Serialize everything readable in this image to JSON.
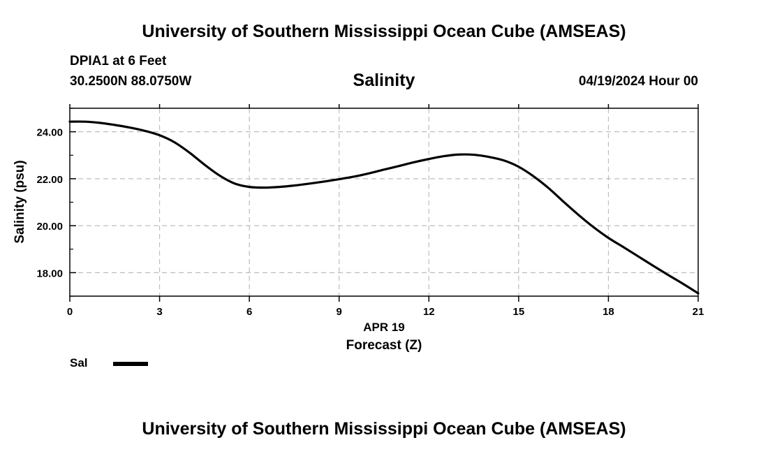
{
  "header": {
    "title": "University of Southern Mississippi Ocean Cube (AMSEAS)",
    "station": "DPIA1 at 6 Feet",
    "coords": "30.2500N  88.0750W",
    "date": "04/19/2024 Hour 00"
  },
  "footer": {
    "title": "University of Southern Mississippi Ocean Cube (AMSEAS)"
  },
  "chart_data": {
    "type": "line",
    "title": "Salinity",
    "xlabel": "Forecast (Z)",
    "xdate_label": "APR 19",
    "ylabel": "Salinity (psu)",
    "xlim": [
      0,
      21
    ],
    "ylim": [
      17.0,
      25.0
    ],
    "xticks": [
      0,
      3,
      6,
      9,
      12,
      15,
      18,
      21
    ],
    "xtick_labels": [
      "0",
      "3",
      "6",
      "9",
      "12",
      "15",
      "18",
      "21"
    ],
    "yticks": [
      18,
      20,
      22,
      24
    ],
    "ytick_labels": [
      "18.00",
      "20.00",
      "22.00",
      "24.00"
    ],
    "grid": true,
    "legend": [
      {
        "label": "Sal",
        "color": "#000000"
      }
    ],
    "series": [
      {
        "name": "Sal",
        "color": "#000000",
        "x": [
          0,
          0.5,
          1,
          1.5,
          2,
          2.5,
          3,
          3.5,
          4,
          4.5,
          5,
          5.5,
          6,
          6.5,
          7,
          7.5,
          8,
          8.5,
          9,
          9.5,
          10,
          10.5,
          11,
          11.5,
          12,
          12.5,
          13,
          13.5,
          14,
          14.5,
          15,
          15.5,
          16,
          16.5,
          17,
          17.5,
          18,
          18.5,
          19,
          19.5,
          20,
          20.5,
          21
        ],
        "y": [
          24.43,
          24.43,
          24.38,
          24.29,
          24.18,
          24.04,
          23.85,
          23.55,
          23.11,
          22.6,
          22.14,
          21.8,
          21.65,
          21.62,
          21.65,
          21.71,
          21.79,
          21.88,
          21.98,
          22.09,
          22.23,
          22.39,
          22.54,
          22.7,
          22.84,
          22.96,
          23.03,
          23.02,
          22.93,
          22.78,
          22.51,
          22.1,
          21.6,
          21.02,
          20.46,
          19.94,
          19.48,
          19.09,
          18.69,
          18.29,
          17.9,
          17.52,
          17.12
        ]
      }
    ]
  }
}
